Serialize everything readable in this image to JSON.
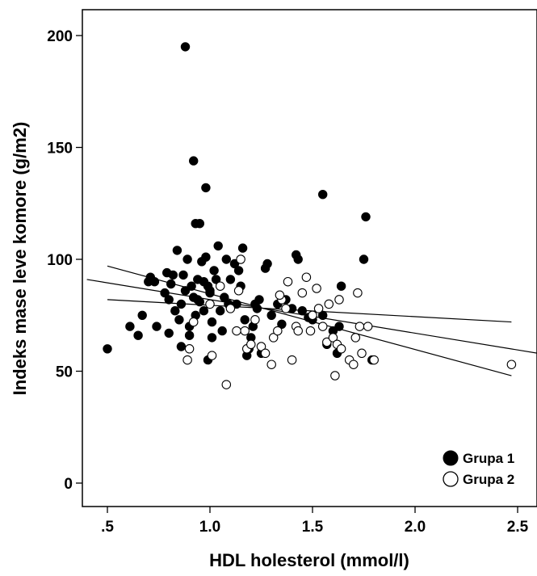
{
  "chart_data": {
    "type": "scatter",
    "xlabel": "HDL holesterol (mmol/l)",
    "ylabel": "Indeks mase leve komore (g/m2)",
    "xlim": [
      0.4,
      2.6
    ],
    "ylim": [
      -10,
      210
    ],
    "x_ticks": [
      {
        "value": 0.5,
        "label": ".5"
      },
      {
        "value": 1.0,
        "label": "1.0"
      },
      {
        "value": 1.5,
        "label": "1.5"
      },
      {
        "value": 2.0,
        "label": "2.0"
      },
      {
        "value": 2.5,
        "label": "2.5"
      }
    ],
    "y_ticks": [
      {
        "value": 0,
        "label": "0"
      },
      {
        "value": 50,
        "label": "50"
      },
      {
        "value": 100,
        "label": "100"
      },
      {
        "value": 150,
        "label": "150"
      },
      {
        "value": 200,
        "label": "200"
      }
    ],
    "grid": false,
    "legend_position": "bottom-right",
    "series": [
      {
        "name": "Grupa 1",
        "marker": "filled-circle",
        "color": "#000000",
        "points": [
          [
            0.88,
            195
          ],
          [
            0.92,
            144
          ],
          [
            0.93,
            116
          ],
          [
            0.95,
            116
          ],
          [
            0.98,
            132
          ],
          [
            1.55,
            129
          ],
          [
            1.76,
            119
          ],
          [
            0.5,
            60
          ],
          [
            0.61,
            70
          ],
          [
            0.65,
            66
          ],
          [
            0.67,
            75
          ],
          [
            0.7,
            90
          ],
          [
            0.71,
            92
          ],
          [
            0.73,
            90
          ],
          [
            0.74,
            70
          ],
          [
            0.78,
            85
          ],
          [
            0.79,
            94
          ],
          [
            0.8,
            67
          ],
          [
            0.8,
            82
          ],
          [
            0.81,
            89
          ],
          [
            0.82,
            93
          ],
          [
            0.83,
            77
          ],
          [
            0.84,
            104
          ],
          [
            0.85,
            73
          ],
          [
            0.86,
            80
          ],
          [
            0.87,
            93
          ],
          [
            0.88,
            86
          ],
          [
            0.89,
            100
          ],
          [
            0.9,
            70
          ],
          [
            0.91,
            88
          ],
          [
            0.92,
            83
          ],
          [
            0.93,
            75
          ],
          [
            0.94,
            91
          ],
          [
            0.95,
            81
          ],
          [
            0.96,
            99
          ],
          [
            0.97,
            90
          ],
          [
            0.98,
            101
          ],
          [
            0.99,
            88
          ],
          [
            1.0,
            86
          ],
          [
            1.0,
            85
          ],
          [
            1.01,
            72
          ],
          [
            1.02,
            95
          ],
          [
            1.03,
            91
          ],
          [
            1.04,
            106
          ],
          [
            1.05,
            77
          ],
          [
            1.06,
            68
          ],
          [
            1.07,
            83
          ],
          [
            1.08,
            100
          ],
          [
            1.1,
            91
          ],
          [
            1.12,
            98
          ],
          [
            1.13,
            80
          ],
          [
            1.15,
            88
          ],
          [
            1.16,
            105
          ],
          [
            1.17,
            73
          ],
          [
            1.18,
            57
          ],
          [
            1.19,
            60
          ],
          [
            1.2,
            65
          ],
          [
            1.21,
            70
          ],
          [
            1.22,
            80
          ],
          [
            1.24,
            82
          ],
          [
            1.25,
            58
          ],
          [
            1.27,
            96
          ],
          [
            1.28,
            98
          ],
          [
            1.3,
            75
          ],
          [
            1.33,
            80
          ],
          [
            1.35,
            71
          ],
          [
            1.37,
            82
          ],
          [
            1.4,
            78
          ],
          [
            1.42,
            102
          ],
          [
            1.43,
            100
          ],
          [
            1.45,
            77
          ],
          [
            1.48,
            74
          ],
          [
            1.5,
            73
          ],
          [
            1.55,
            75
          ],
          [
            1.57,
            62
          ],
          [
            1.6,
            68
          ],
          [
            1.62,
            58
          ],
          [
            1.63,
            70
          ],
          [
            1.64,
            88
          ],
          [
            1.75,
            100
          ],
          [
            1.79,
            55
          ],
          [
            0.99,
            55
          ],
          [
            0.97,
            77
          ],
          [
            1.09,
            80
          ],
          [
            1.14,
            95
          ],
          [
            0.94,
            82
          ],
          [
            1.01,
            65
          ],
          [
            1.23,
            78
          ],
          [
            0.9,
            66
          ],
          [
            0.86,
            61
          ]
        ]
      },
      {
        "name": "Grupa 2",
        "marker": "open-circle",
        "color": "#000000",
        "points": [
          [
            0.89,
            55
          ],
          [
            0.9,
            60
          ],
          [
            0.92,
            72
          ],
          [
            1.0,
            80
          ],
          [
            1.01,
            57
          ],
          [
            1.05,
            88
          ],
          [
            1.08,
            44
          ],
          [
            1.1,
            78
          ],
          [
            1.13,
            68
          ],
          [
            1.15,
            100
          ],
          [
            1.17,
            68
          ],
          [
            1.18,
            60
          ],
          [
            1.2,
            62
          ],
          [
            1.22,
            73
          ],
          [
            1.25,
            61
          ],
          [
            1.27,
            58
          ],
          [
            1.3,
            53
          ],
          [
            1.31,
            65
          ],
          [
            1.33,
            68
          ],
          [
            1.35,
            82
          ],
          [
            1.37,
            78
          ],
          [
            1.38,
            90
          ],
          [
            1.4,
            55
          ],
          [
            1.42,
            70
          ],
          [
            1.43,
            68
          ],
          [
            1.45,
            85
          ],
          [
            1.47,
            92
          ],
          [
            1.5,
            75
          ],
          [
            1.52,
            87
          ],
          [
            1.53,
            78
          ],
          [
            1.55,
            70
          ],
          [
            1.57,
            63
          ],
          [
            1.58,
            80
          ],
          [
            1.6,
            65
          ],
          [
            1.61,
            48
          ],
          [
            1.62,
            62
          ],
          [
            1.63,
            82
          ],
          [
            1.64,
            60
          ],
          [
            1.68,
            55
          ],
          [
            1.7,
            53
          ],
          [
            1.71,
            65
          ],
          [
            1.72,
            85
          ],
          [
            1.73,
            70
          ],
          [
            1.74,
            58
          ],
          [
            1.77,
            70
          ],
          [
            1.8,
            55
          ],
          [
            2.47,
            53
          ],
          [
            1.14,
            86
          ],
          [
            1.49,
            68
          ],
          [
            1.34,
            84
          ]
        ]
      }
    ],
    "lines": [
      {
        "name": "fit",
        "x": [
          0.4,
          2.6
        ],
        "y": [
          91,
          58
        ]
      },
      {
        "name": "ci-upper",
        "x": [
          0.5,
          2.47
        ],
        "y": [
          82,
          72
        ]
      },
      {
        "name": "ci-lower",
        "x": [
          0.5,
          2.47
        ],
        "y": [
          97,
          48
        ]
      }
    ]
  }
}
